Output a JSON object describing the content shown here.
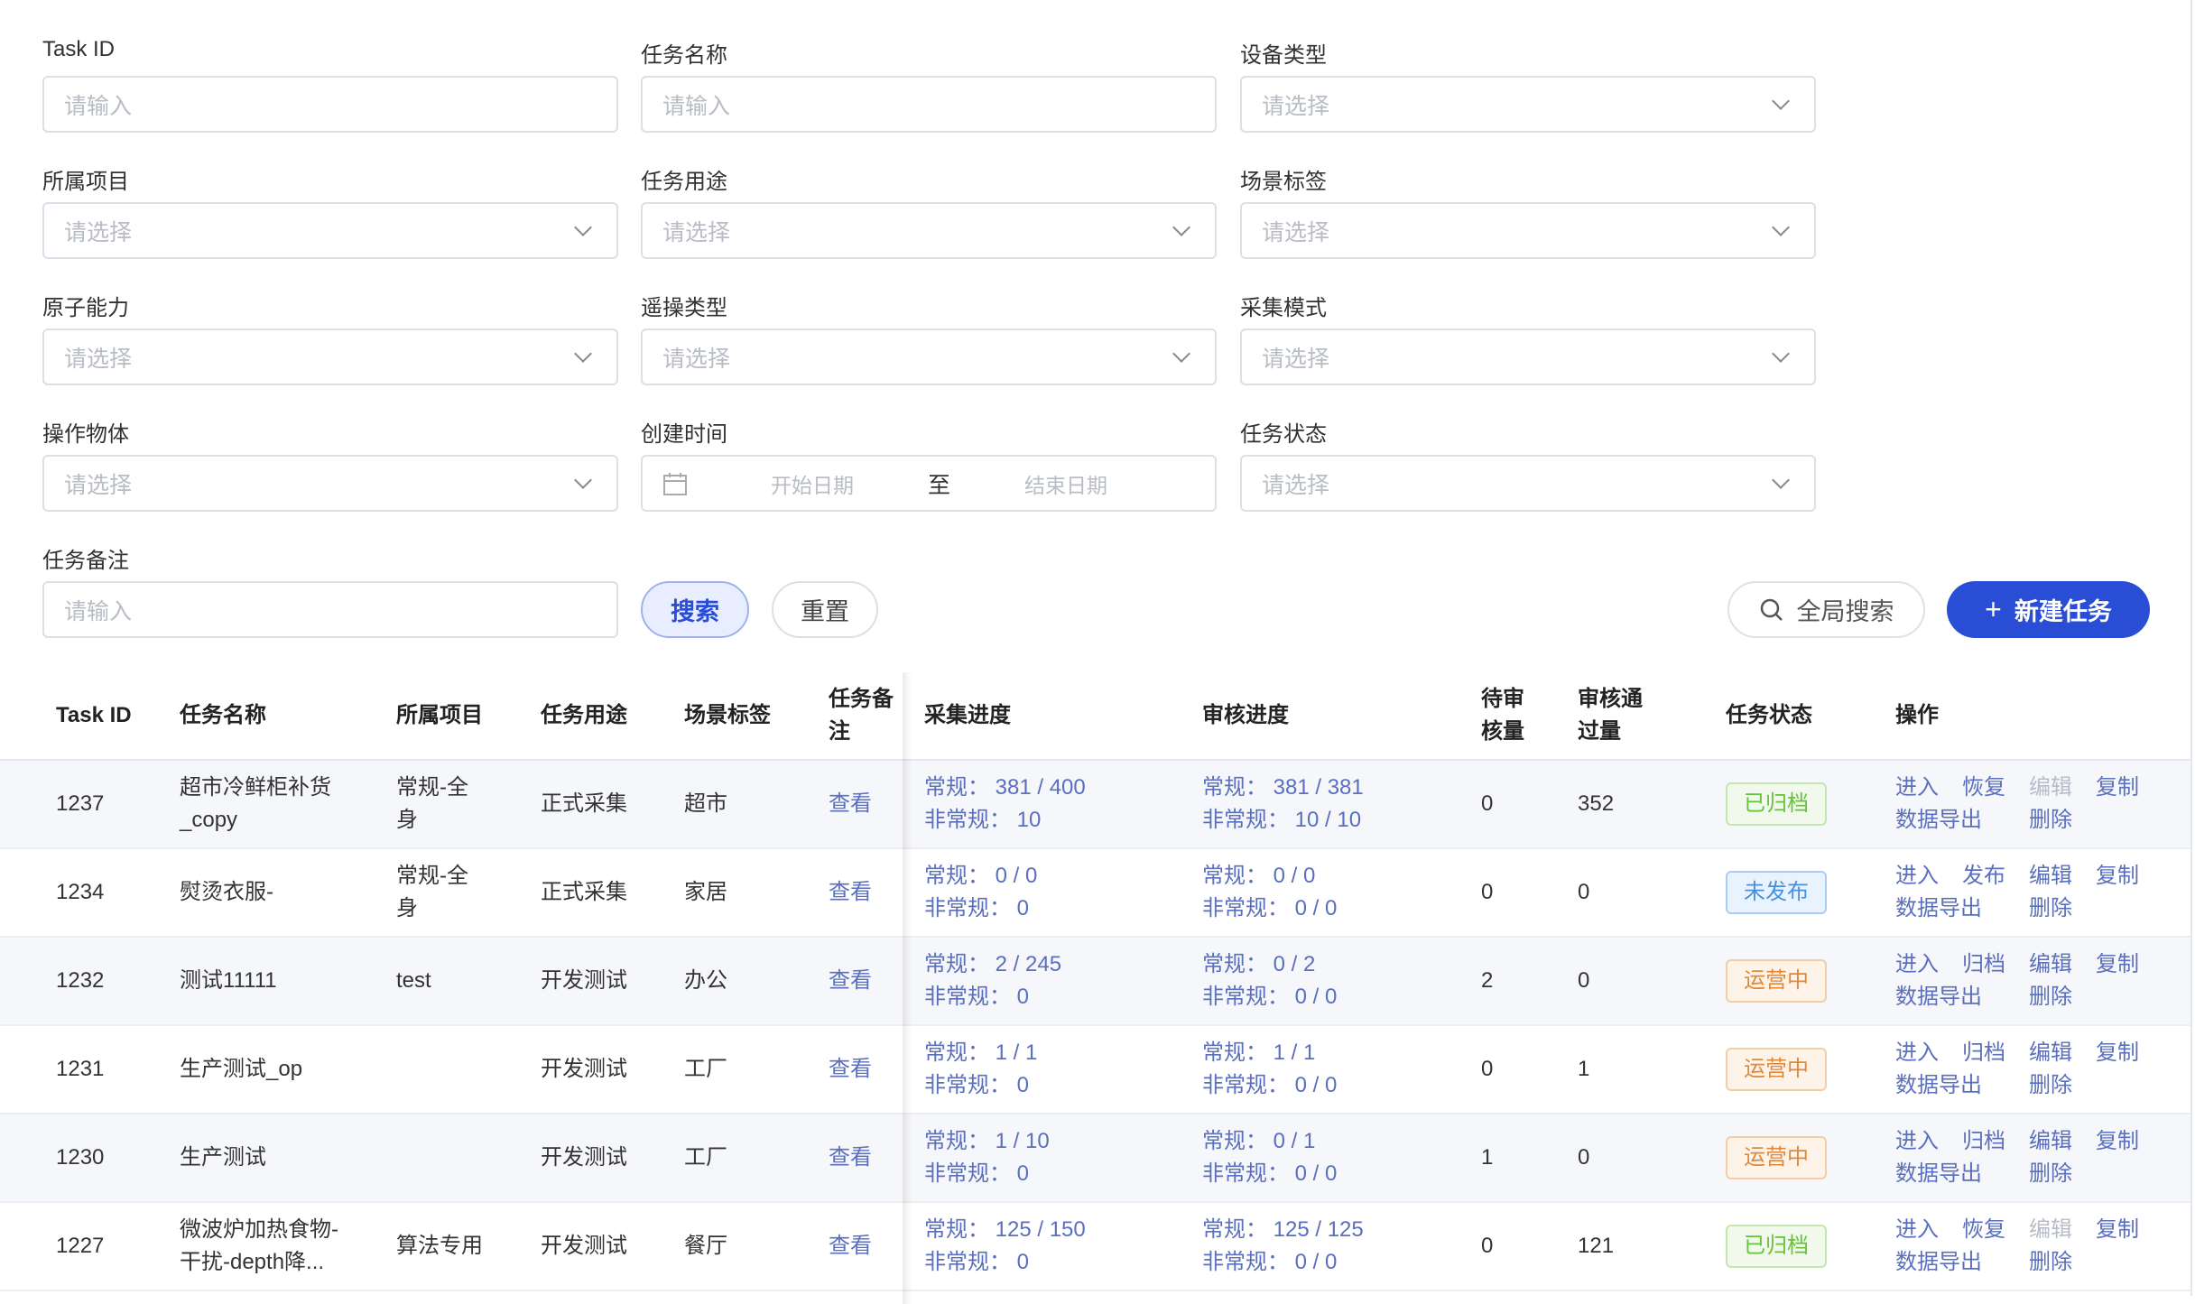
{
  "filters": {
    "task_id": {
      "label": "Task ID",
      "placeholder": "请输入"
    },
    "task_name": {
      "label": "任务名称",
      "placeholder": "请输入"
    },
    "device_type": {
      "label": "设备类型",
      "placeholder": "请选择"
    },
    "project": {
      "label": "所属项目",
      "placeholder": "请选择"
    },
    "purpose": {
      "label": "任务用途",
      "placeholder": "请选择"
    },
    "scene_tag": {
      "label": "场景标签",
      "placeholder": "请选择"
    },
    "atomic": {
      "label": "原子能力",
      "placeholder": "请选择"
    },
    "teleop": {
      "label": "遥操类型",
      "placeholder": "请选择"
    },
    "mode": {
      "label": "采集模式",
      "placeholder": "请选择"
    },
    "object": {
      "label": "操作物体",
      "placeholder": "请选择"
    },
    "created": {
      "label": "创建时间",
      "start": "开始日期",
      "sep": "至",
      "end": "结束日期"
    },
    "status": {
      "label": "任务状态",
      "placeholder": "请选择"
    },
    "remark": {
      "label": "任务备注",
      "placeholder": "请输入"
    }
  },
  "buttons": {
    "search": "搜索",
    "reset": "重置",
    "global_search": "全局搜索",
    "new_task": "新建任务"
  },
  "table": {
    "headers": [
      "Task ID",
      "任务名称",
      "所属项目",
      "任务用途",
      "场景标签",
      "任务备注",
      "采集进度",
      "审核进度",
      "待审\n核量",
      "审核通\n过量",
      "任务状态",
      "操作"
    ],
    "rows": [
      {
        "id": "1237",
        "name": "超市冷鲜柜补货\n_copy",
        "project": "常规-全\n身",
        "purpose": "正式采集",
        "scene": "超市",
        "remark": "查看",
        "collect": [
          "常规： 381 / 400",
          "非常规： 10"
        ],
        "review": [
          "常规： 381 / 381",
          "非常规： 10 / 10"
        ],
        "pending": "0",
        "passed": "352",
        "status": "已归档",
        "status_type": "archived",
        "ops": [
          "进入",
          "恢复",
          "编辑",
          "复制",
          "数据导出",
          "删除"
        ],
        "disabled": [
          "编辑"
        ]
      },
      {
        "id": "1234",
        "name": "熨烫衣服-",
        "project": "常规-全\n身",
        "purpose": "正式采集",
        "scene": "家居",
        "remark": "查看",
        "collect": [
          "常规： 0 / 0",
          "非常规： 0"
        ],
        "review": [
          "常规： 0 / 0",
          "非常规： 0 / 0"
        ],
        "pending": "0",
        "passed": "0",
        "status": "未发布",
        "status_type": "unpublished",
        "ops": [
          "进入",
          "发布",
          "编辑",
          "复制",
          "数据导出",
          "删除"
        ],
        "disabled": []
      },
      {
        "id": "1232",
        "name": "测试11111",
        "project": "test",
        "purpose": "开发测试",
        "scene": "办公",
        "remark": "查看",
        "collect": [
          "常规： 2 / 245",
          "非常规： 0"
        ],
        "review": [
          "常规： 0 / 2",
          "非常规： 0 / 0"
        ],
        "pending": "2",
        "passed": "0",
        "status": "运营中",
        "status_type": "running",
        "ops": [
          "进入",
          "归档",
          "编辑",
          "复制",
          "数据导出",
          "删除"
        ],
        "disabled": []
      },
      {
        "id": "1231",
        "name": "生产测试_op",
        "project": "",
        "purpose": "开发测试",
        "scene": "工厂",
        "remark": "查看",
        "collect": [
          "常规： 1 / 1",
          "非常规： 0"
        ],
        "review": [
          "常规： 1 / 1",
          "非常规： 0 / 0"
        ],
        "pending": "0",
        "passed": "1",
        "status": "运营中",
        "status_type": "running",
        "ops": [
          "进入",
          "归档",
          "编辑",
          "复制",
          "数据导出",
          "删除"
        ],
        "disabled": []
      },
      {
        "id": "1230",
        "name": "生产测试",
        "project": "",
        "purpose": "开发测试",
        "scene": "工厂",
        "remark": "查看",
        "collect": [
          "常规： 1 / 10",
          "非常规： 0"
        ],
        "review": [
          "常规： 0 / 1",
          "非常规： 0 / 0"
        ],
        "pending": "1",
        "passed": "0",
        "status": "运营中",
        "status_type": "running",
        "ops": [
          "进入",
          "归档",
          "编辑",
          "复制",
          "数据导出",
          "删除"
        ],
        "disabled": []
      },
      {
        "id": "1227",
        "name": "微波炉加热食物-\n干扰-depth降...",
        "project": "算法专用",
        "purpose": "开发测试",
        "scene": "餐厅",
        "remark": "查看",
        "collect": [
          "常规： 125 / 150",
          "非常规： 0"
        ],
        "review": [
          "常规： 125 / 125",
          "非常规： 0 / 0"
        ],
        "pending": "0",
        "passed": "121",
        "status": "已归档",
        "status_type": "archived",
        "ops": [
          "进入",
          "恢复",
          "编辑",
          "复制",
          "数据导出",
          "删除"
        ],
        "disabled": [
          "编辑"
        ]
      }
    ]
  },
  "colors": {
    "primary": "#2a4dd6",
    "link": "#5a6fbd",
    "archived": "#67c23a",
    "unpublished": "#409eff",
    "running": "#e6a23c"
  }
}
